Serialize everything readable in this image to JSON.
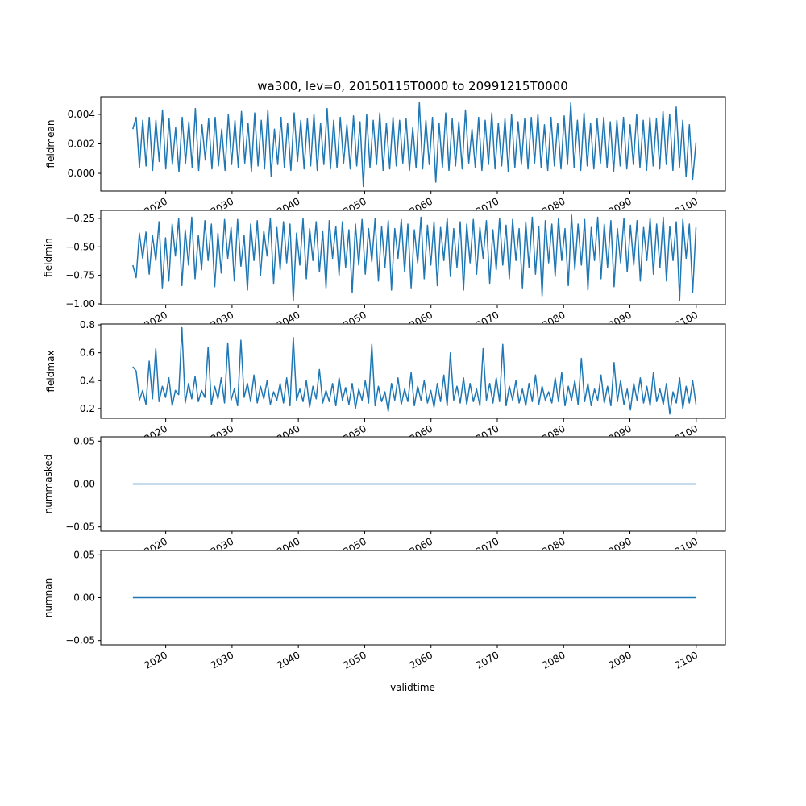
{
  "chart_data": {
    "type": "line",
    "title": "wa300, lev=0, 20150115T0000 to 20991215T0000",
    "xlabel": "validtime",
    "x_range": [
      2015.04,
      2099.96
    ],
    "xlim": [
      2010.2,
      2104.4
    ],
    "xticks": [
      2020,
      2030,
      2040,
      2050,
      2060,
      2070,
      2080,
      2090,
      2100
    ],
    "xtick_labels": [
      "2020",
      "2030",
      "2040",
      "2050",
      "2060",
      "2070",
      "2080",
      "2090",
      "2100"
    ],
    "line_color": "#1f77b4",
    "panels": [
      {
        "ylabel": "fieldmean",
        "ylim": [
          -0.0012,
          0.0052
        ],
        "yticks": [
          0.0,
          0.002,
          0.004
        ],
        "ytick_labels": [
          "0.000",
          "0.002",
          "0.004"
        ],
        "values": [
          0.003,
          0.0038,
          0.0004,
          0.0036,
          0.0005,
          0.0038,
          0.0002,
          0.0036,
          0.0008,
          0.0043,
          0.0003,
          0.0037,
          0.0006,
          0.0031,
          0.0001,
          0.0038,
          0.0007,
          0.0035,
          0.0004,
          0.0044,
          0.0002,
          0.0033,
          0.0009,
          0.0037,
          0.0003,
          0.0038,
          0.0005,
          0.003,
          0.0002,
          0.004,
          0.0006,
          0.0036,
          0.0004,
          0.0042,
          0.0007,
          0.0034,
          0.0001,
          0.0041,
          0.0005,
          0.0036,
          0.0003,
          0.0043,
          -0.0002,
          0.003,
          0.0006,
          0.0038,
          0.0004,
          0.0034,
          0.0002,
          0.0041,
          0.0008,
          0.0036,
          0.0003,
          0.0037,
          0.0005,
          0.004,
          0.0002,
          0.0034,
          0.0006,
          0.0044,
          0.0003,
          0.0036,
          0.0004,
          0.0038,
          0.0007,
          0.0033,
          0.0003,
          0.0039,
          0.0005,
          0.0035,
          -0.0009,
          0.004,
          0.0004,
          0.0036,
          0.0006,
          0.0041,
          0.0002,
          0.0034,
          0.0003,
          0.0038,
          0.0005,
          0.0036,
          0.0007,
          0.0037,
          0.0002,
          0.0031,
          0.0004,
          0.0048,
          0.0003,
          0.0036,
          0.0006,
          0.0038,
          -0.0006,
          0.0034,
          0.0004,
          0.0041,
          0.0002,
          0.0037,
          0.0005,
          0.0035,
          0.0003,
          0.0043,
          0.0007,
          0.003,
          0.0004,
          0.0038,
          0.0002,
          0.0036,
          0.0006,
          0.0041,
          0.0003,
          0.0034,
          0.0005,
          0.0037,
          0.0001,
          0.004,
          0.0004,
          0.0035,
          0.0006,
          0.0037,
          0.0003,
          0.0038,
          0.0007,
          0.004,
          0.0004,
          0.0033,
          0.0002,
          0.0038,
          0.0005,
          0.0034,
          0.0003,
          0.0039,
          0.0006,
          0.0048,
          0.0004,
          0.0036,
          0.0002,
          0.0041,
          0.0005,
          0.0034,
          0.0003,
          0.0037,
          0.0007,
          0.0038,
          0.0004,
          0.0035,
          0.0001,
          0.0036,
          0.0005,
          0.0038,
          0.0003,
          0.0033,
          0.0006,
          0.004,
          0.0004,
          0.0036,
          0.0002,
          0.0038,
          0.0005,
          0.0037,
          0.0003,
          0.0042,
          0.0006,
          0.004,
          0.0002,
          0.0045,
          0.0004,
          0.0036,
          -0.0002,
          0.0033,
          -0.0004,
          0.0021
        ]
      },
      {
        "ylabel": "fieldmin",
        "ylim": [
          -1.007,
          -0.18
        ],
        "yticks": [
          -1.0,
          -0.75,
          -0.5,
          -0.25
        ],
        "ytick_labels": [
          "−1.00",
          "−0.75",
          "−0.50",
          "−0.25"
        ],
        "values": [
          -0.66,
          -0.77,
          -0.38,
          -0.6,
          -0.37,
          -0.74,
          -0.4,
          -0.62,
          -0.28,
          -0.86,
          -0.42,
          -0.8,
          -0.3,
          -0.58,
          -0.25,
          -0.84,
          -0.35,
          -0.66,
          -0.24,
          -0.78,
          -0.4,
          -0.7,
          -0.27,
          -0.62,
          -0.3,
          -0.85,
          -0.38,
          -0.73,
          -0.26,
          -0.6,
          -0.33,
          -0.8,
          -0.26,
          -0.67,
          -0.4,
          -0.88,
          -0.3,
          -0.62,
          -0.27,
          -0.75,
          -0.36,
          -0.58,
          -0.25,
          -0.82,
          -0.33,
          -0.7,
          -0.28,
          -0.64,
          -0.3,
          -0.97,
          -0.38,
          -0.66,
          -0.25,
          -0.78,
          -0.34,
          -0.62,
          -0.28,
          -0.72,
          -0.36,
          -0.86,
          -0.27,
          -0.6,
          -0.32,
          -0.75,
          -0.28,
          -0.68,
          -0.35,
          -0.9,
          -0.3,
          -0.66,
          -0.26,
          -0.74,
          -0.34,
          -0.63,
          -0.25,
          -0.8,
          -0.32,
          -0.68,
          -0.27,
          -0.88,
          -0.34,
          -0.6,
          -0.26,
          -0.72,
          -0.3,
          -0.86,
          -0.35,
          -0.64,
          -0.24,
          -0.78,
          -0.31,
          -0.66,
          -0.28,
          -0.84,
          -0.33,
          -0.62,
          -0.25,
          -0.76,
          -0.34,
          -0.68,
          -0.28,
          -0.88,
          -0.3,
          -0.64,
          -0.26,
          -0.74,
          -0.33,
          -0.6,
          -0.27,
          -0.82,
          -0.35,
          -0.7,
          -0.25,
          -0.66,
          -0.31,
          -0.78,
          -0.26,
          -0.62,
          -0.34,
          -0.86,
          -0.28,
          -0.68,
          -0.24,
          -0.74,
          -0.32,
          -0.93,
          -0.27,
          -0.64,
          -0.3,
          -0.76,
          -0.25,
          -0.62,
          -0.34,
          -0.84,
          -0.22,
          -0.7,
          -0.3,
          -0.66,
          -0.26,
          -0.88,
          -0.33,
          -0.62,
          -0.24,
          -0.78,
          -0.3,
          -0.68,
          -0.27,
          -0.85,
          -0.34,
          -0.64,
          -0.25,
          -0.72,
          -0.31,
          -0.66,
          -0.27,
          -0.8,
          -0.33,
          -0.62,
          -0.25,
          -0.74,
          -0.3,
          -0.68,
          -0.24,
          -0.8,
          -0.32,
          -0.62,
          -0.28,
          -0.97,
          -0.26,
          -0.6,
          -0.3,
          -0.9,
          -0.33
        ]
      },
      {
        "ylabel": "fieldmax",
        "ylim": [
          0.13,
          0.806
        ],
        "yticks": [
          0.2,
          0.4,
          0.6,
          0.8
        ],
        "ytick_labels": [
          "0.2",
          "0.4",
          "0.6",
          "0.8"
        ],
        "values": [
          0.5,
          0.47,
          0.26,
          0.33,
          0.23,
          0.54,
          0.27,
          0.63,
          0.25,
          0.36,
          0.28,
          0.42,
          0.22,
          0.33,
          0.3,
          0.78,
          0.24,
          0.38,
          0.27,
          0.43,
          0.25,
          0.33,
          0.28,
          0.64,
          0.23,
          0.36,
          0.27,
          0.42,
          0.24,
          0.67,
          0.26,
          0.34,
          0.22,
          0.69,
          0.28,
          0.38,
          0.25,
          0.44,
          0.24,
          0.36,
          0.27,
          0.4,
          0.23,
          0.32,
          0.26,
          0.38,
          0.24,
          0.42,
          0.22,
          0.71,
          0.26,
          0.34,
          0.25,
          0.4,
          0.21,
          0.36,
          0.27,
          0.48,
          0.24,
          0.33,
          0.25,
          0.38,
          0.22,
          0.42,
          0.26,
          0.35,
          0.23,
          0.38,
          0.2,
          0.34,
          0.26,
          0.4,
          0.24,
          0.66,
          0.22,
          0.36,
          0.25,
          0.32,
          0.18,
          0.38,
          0.26,
          0.42,
          0.23,
          0.34,
          0.25,
          0.46,
          0.22,
          0.36,
          0.26,
          0.4,
          0.24,
          0.33,
          0.21,
          0.38,
          0.25,
          0.44,
          0.22,
          0.6,
          0.26,
          0.36,
          0.24,
          0.42,
          0.23,
          0.38,
          0.25,
          0.34,
          0.22,
          0.63,
          0.26,
          0.38,
          0.24,
          0.42,
          0.25,
          0.66,
          0.22,
          0.36,
          0.26,
          0.4,
          0.24,
          0.34,
          0.22,
          0.38,
          0.25,
          0.44,
          0.23,
          0.36,
          0.26,
          0.32,
          0.24,
          0.42,
          0.25,
          0.46,
          0.22,
          0.36,
          0.26,
          0.4,
          0.23,
          0.56,
          0.25,
          0.38,
          0.22,
          0.34,
          0.26,
          0.44,
          0.24,
          0.36,
          0.22,
          0.53,
          0.25,
          0.4,
          0.23,
          0.34,
          0.19,
          0.38,
          0.26,
          0.42,
          0.24,
          0.36,
          0.22,
          0.46,
          0.25,
          0.34,
          0.23,
          0.38,
          0.16,
          0.32,
          0.24,
          0.42,
          0.2,
          0.36,
          0.24,
          0.4,
          0.23
        ]
      },
      {
        "ylabel": "nummasked",
        "ylim": [
          -0.055,
          0.055
        ],
        "yticks": [
          -0.05,
          0.0,
          0.05
        ],
        "ytick_labels": [
          "−0.05",
          "0.00",
          "0.05"
        ],
        "values": [
          0,
          0
        ]
      },
      {
        "ylabel": "numnan",
        "ylim": [
          -0.055,
          0.055
        ],
        "yticks": [
          -0.05,
          0.0,
          0.05
        ],
        "ytick_labels": [
          "−0.05",
          "0.00",
          "0.05"
        ],
        "values": [
          0,
          0
        ]
      }
    ]
  }
}
